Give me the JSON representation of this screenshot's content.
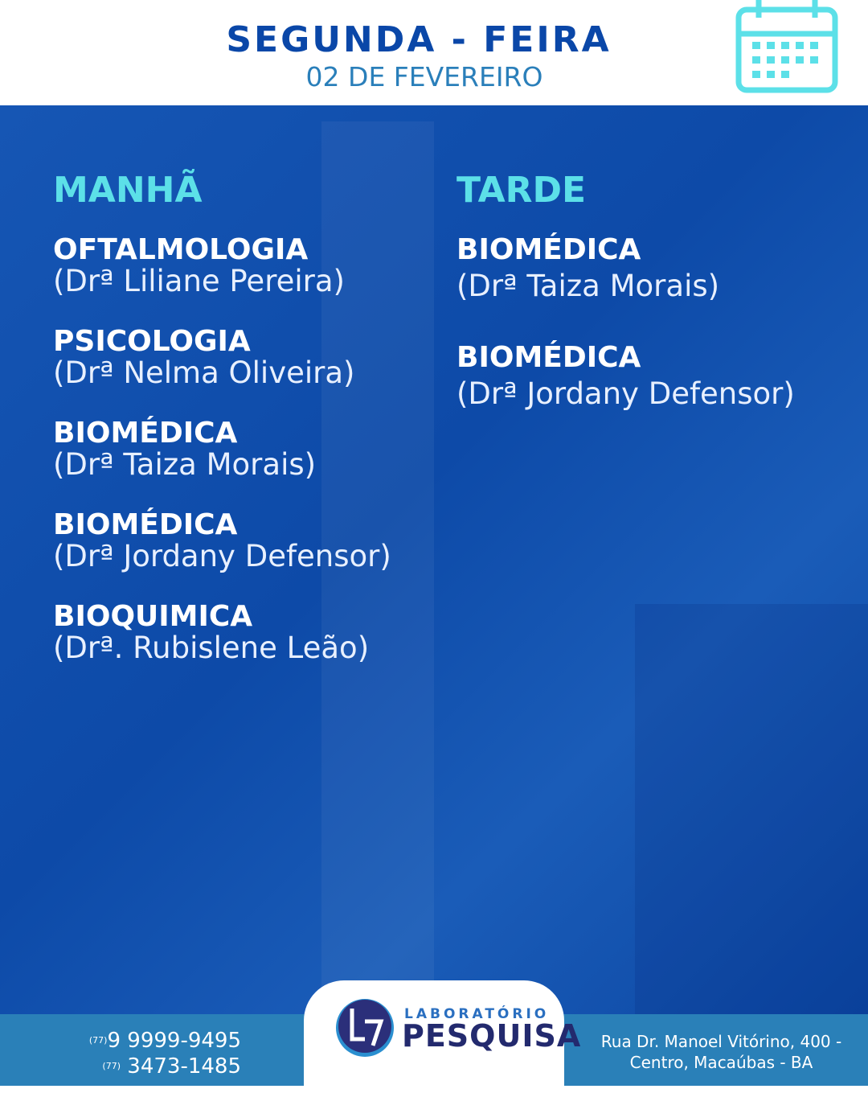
{
  "header": {
    "day": "SEGUNDA - FEIRA",
    "date": "02 DE FEVEREIRO",
    "icon": "calendar-icon",
    "accent": "#5ce0e8"
  },
  "morning": {
    "title": "MANHÃ",
    "entries": [
      {
        "specialty": "OFTALMOLOGIA",
        "doctor": "(Drª Liliane Pereira)"
      },
      {
        "specialty": "PSICOLOGIA",
        "doctor": "(Drª Nelma Oliveira)"
      },
      {
        "specialty": "BIOMÉDICA",
        "doctor": "(Drª Taiza Morais)"
      },
      {
        "specialty": "BIOMÉDICA",
        "doctor": "(Drª Jordany Defensor)"
      },
      {
        "specialty": "BIOQUIMICA",
        "doctor": "(Drª. Rubislene Leão)"
      }
    ]
  },
  "afternoon": {
    "title": "TARDE",
    "entries": [
      {
        "specialty": "BIOMÉDICA",
        "doctor": "(Drª Taiza Morais)"
      },
      {
        "specialty": "BIOMÉDICA",
        "doctor": "(Drª Jordany Defensor)"
      }
    ]
  },
  "footer": {
    "phone1_ddd": "(77)",
    "phone1": "9 9999-9495",
    "phone2_ddd": "(77)",
    "phone2": "3473-1485",
    "logo_line1": "LABORATÓRIO",
    "logo_line2": "PESQUISA",
    "address_line1": "Rua Dr. Manoel Vitórino, 400 -",
    "address_line2": "Centro, Macaúbas - BA"
  }
}
